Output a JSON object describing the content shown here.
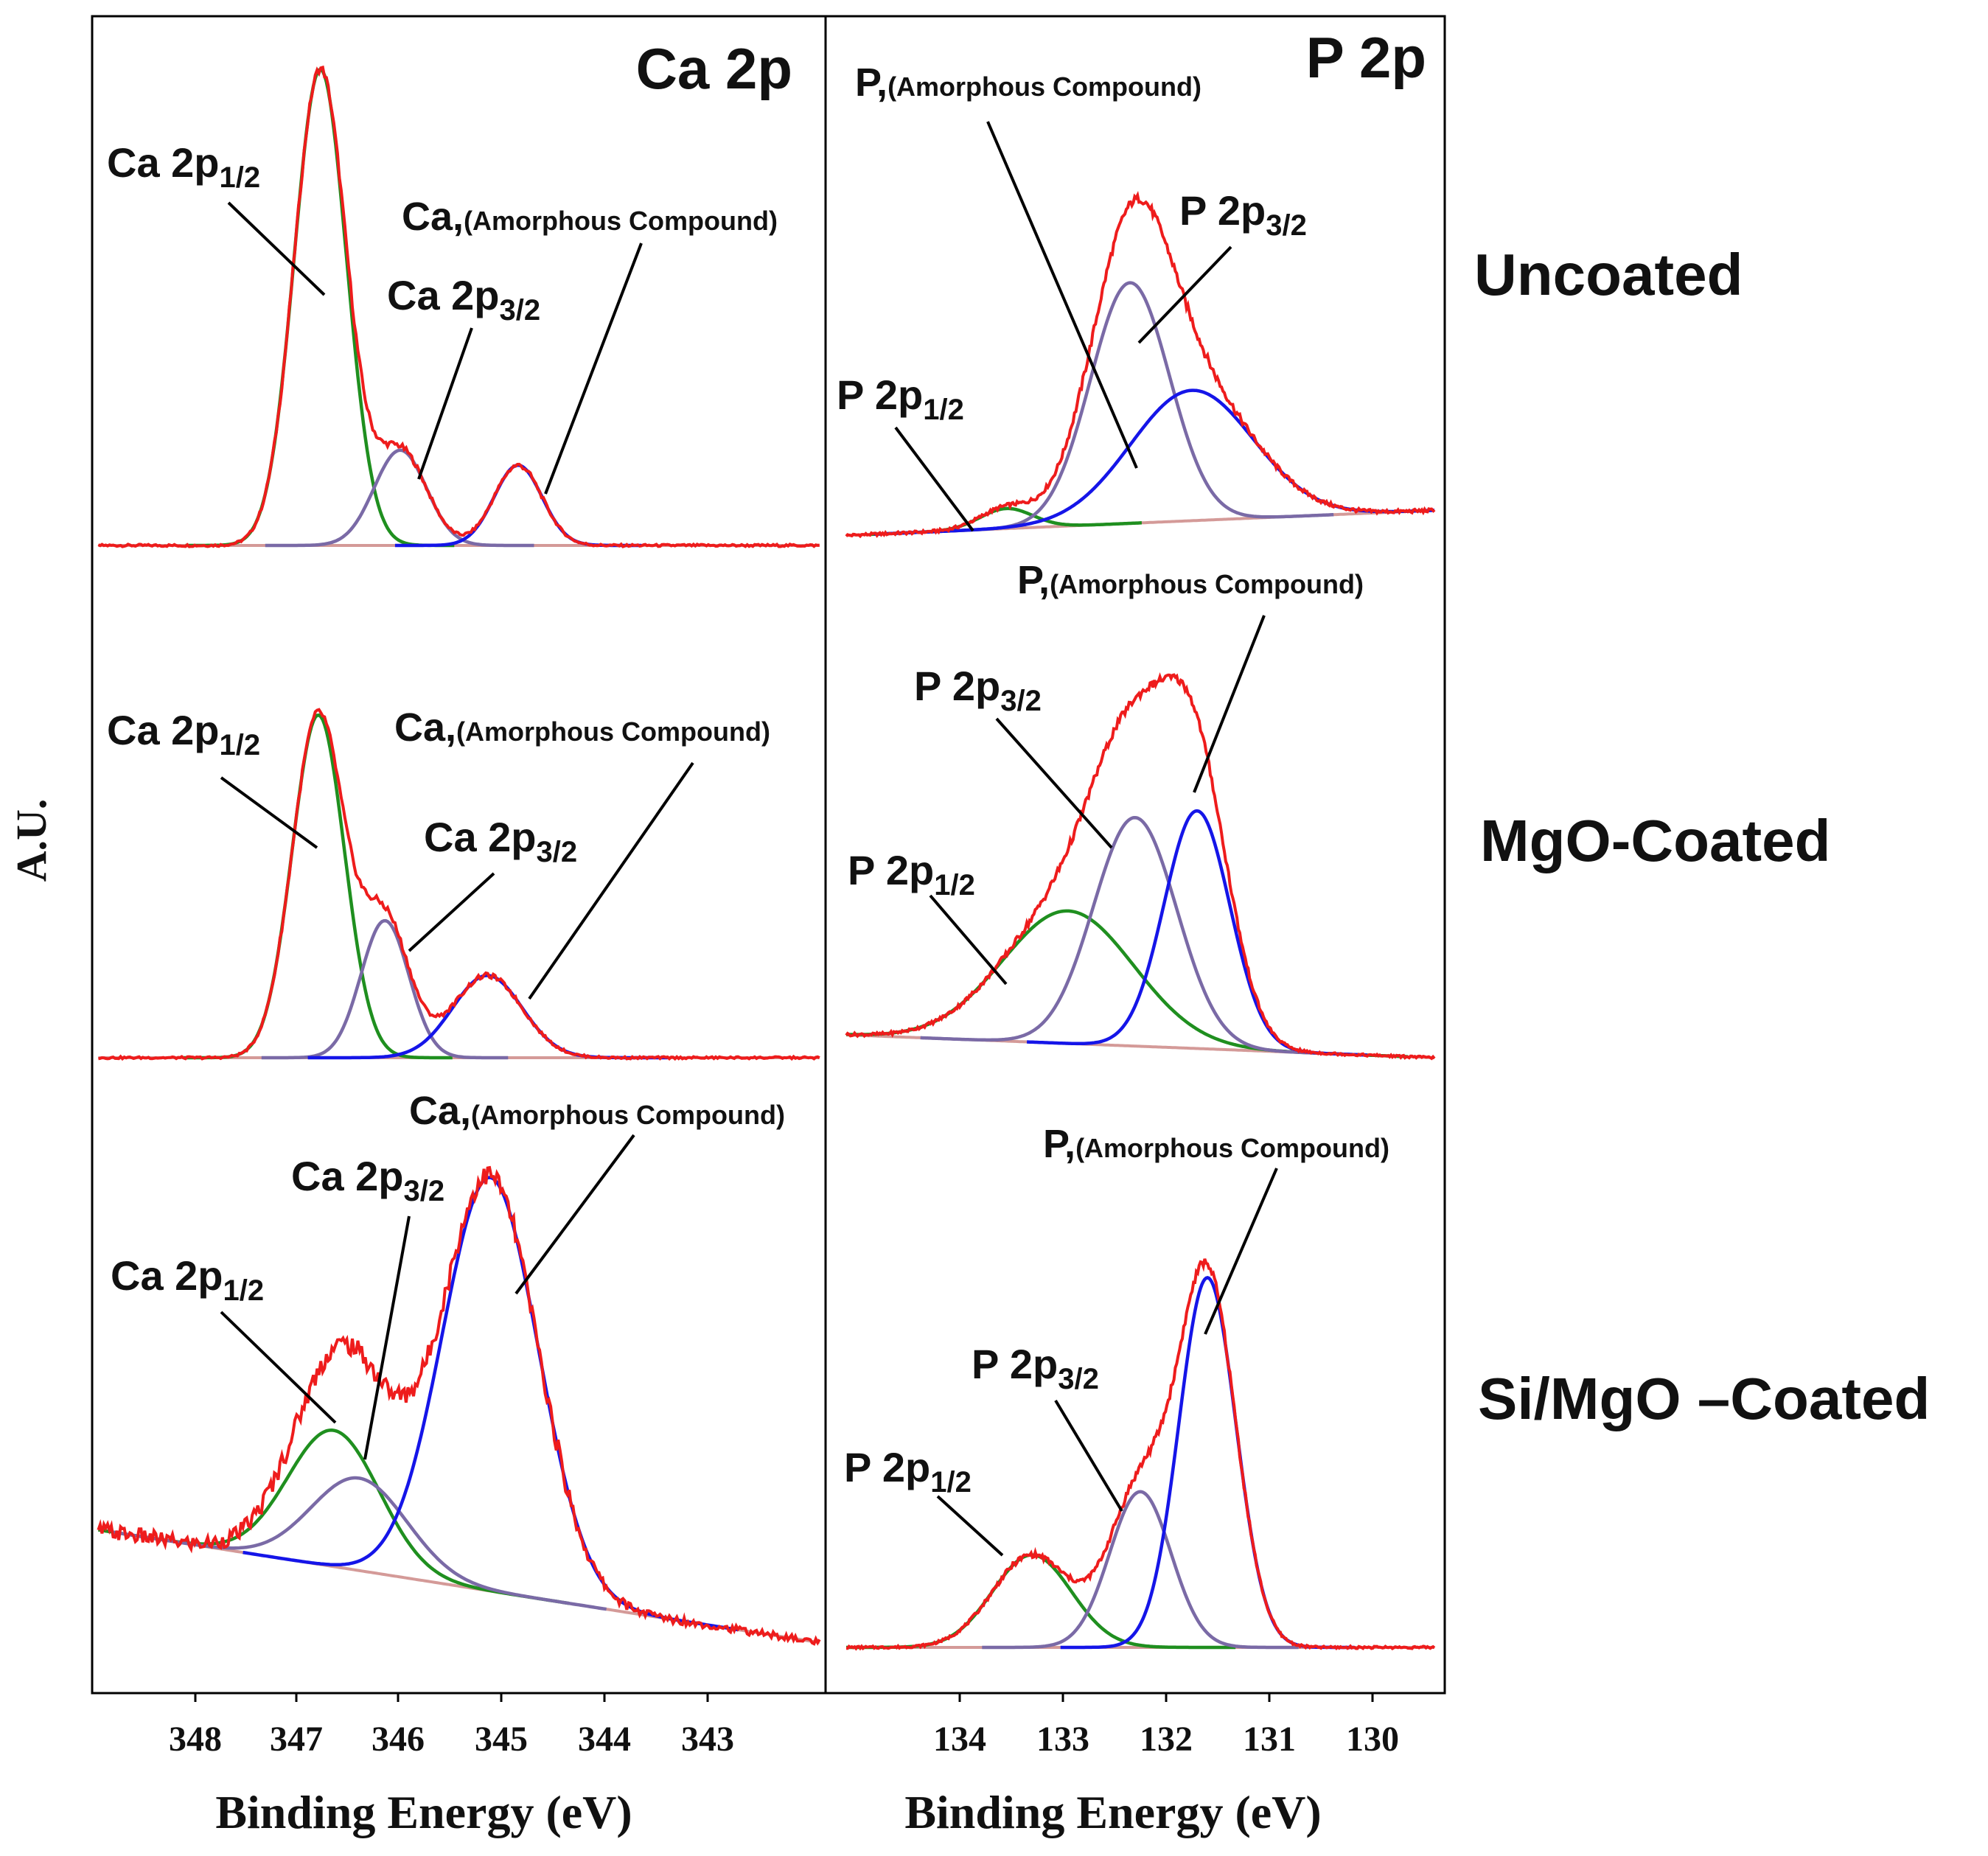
{
  "figure": {
    "y_axis_label": "A.U.",
    "x_axis_label": "Binding Energy (eV)",
    "row_labels": [
      "Uncoated",
      "MgO-Coated",
      "Si/MgO –Coated"
    ]
  },
  "colors": {
    "envelope": "#ee1c1c",
    "p12": "#1f8f1f",
    "p32": "#7a6aa6",
    "amorphous": "#1515e8",
    "background": "#d49a98",
    "leader": "#000000"
  },
  "chart_data": [
    {
      "type": "line",
      "title": "Ca 2p",
      "xlabel": "Binding Energy (eV)",
      "ylabel": "A.U.",
      "x_reversed": true,
      "xlim": [
        349.2,
        341.6
      ],
      "xticks": [
        348,
        347,
        346,
        345,
        344,
        343
      ],
      "samples": [
        "Uncoated",
        "MgO-Coated",
        "Si/MgO –Coated"
      ],
      "components": {
        "p12": {
          "name": "Ca 2p1/2",
          "main": "Ca 2p",
          "sub": "1/2"
        },
        "p32": {
          "name": "Ca 2p3/2",
          "main": "Ca 2p",
          "sub": "3/2"
        },
        "amorphous": {
          "name": "Ca,(Amorphous Compound)",
          "main": "Ca,",
          "sub": "(Amorphous Compound)"
        }
      },
      "series": [
        {
          "sample": "Uncoated",
          "peaks": [
            {
              "component": "p12",
              "center": 346.78,
              "height": 0.95,
              "fwhm": 0.6
            },
            {
              "component": "p32",
              "center": 346.0,
              "height": 0.19,
              "fwhm": 0.6
            },
            {
              "component": "amorphous",
              "center": 344.85,
              "height": 0.16,
              "fwhm": 0.55
            }
          ],
          "background": [
            0.0,
            0.0
          ]
        },
        {
          "sample": "MgO-Coated",
          "peaks": [
            {
              "component": "p12",
              "center": 346.8,
              "height": 0.75,
              "fwhm": 0.6
            },
            {
              "component": "p32",
              "center": 346.15,
              "height": 0.3,
              "fwhm": 0.55
            },
            {
              "component": "amorphous",
              "center": 345.15,
              "height": 0.18,
              "fwhm": 0.8
            }
          ],
          "background": [
            0.0,
            0.0
          ]
        },
        {
          "sample": "Si/MgO –Coated",
          "peaks": [
            {
              "component": "p12",
              "center": 346.65,
              "height": 0.28,
              "fwhm": 1.05
            },
            {
              "component": "p32",
              "center": 346.4,
              "height": 0.19,
              "fwhm": 1.1
            },
            {
              "component": "amorphous",
              "center": 345.12,
              "height": 0.85,
              "fwhm": 1.1
            }
          ],
          "background": [
            0.25,
            0.0
          ]
        }
      ]
    },
    {
      "type": "line",
      "title": "P 2p",
      "xlabel": "Binding Energy (eV)",
      "ylabel": "A.U.",
      "x_reversed": true,
      "xlim": [
        135.1,
        129.4
      ],
      "xticks": [
        134,
        133,
        132,
        131,
        130
      ],
      "samples": [
        "Uncoated",
        "MgO-Coated",
        "Si/MgO –Coated"
      ],
      "components": {
        "p12": {
          "name": "P 2p1/2",
          "main": "P 2p",
          "sub": "1/2"
        },
        "p32": {
          "name": "P 2p3/2",
          "main": "P 2p",
          "sub": "3/2"
        },
        "amorphous": {
          "name": "P,(Amorphous Compound)",
          "main": "P,",
          "sub": "(Amorphous Compound)"
        }
      },
      "series": [
        {
          "sample": "Uncoated",
          "peaks": [
            {
              "component": "p12",
              "center": 133.55,
              "height": 0.04,
              "fwhm": 0.6
            },
            {
              "component": "p32",
              "center": 132.35,
              "height": 0.48,
              "fwhm": 0.9
            },
            {
              "component": "amorphous",
              "center": 131.75,
              "height": 0.26,
              "fwhm": 1.4
            }
          ],
          "background": [
            0.02,
            0.07
          ]
        },
        {
          "sample": "MgO-Coated",
          "peaks": [
            {
              "component": "p12",
              "center": 132.95,
              "height": 0.29,
              "fwhm": 1.5
            },
            {
              "component": "p32",
              "center": 132.3,
              "height": 0.5,
              "fwhm": 0.95
            },
            {
              "component": "amorphous",
              "center": 131.7,
              "height": 0.52,
              "fwhm": 0.75
            }
          ],
          "background": [
            0.05,
            0.0
          ]
        },
        {
          "sample": "Si/MgO –Coated",
          "peaks": [
            {
              "component": "p12",
              "center": 133.3,
              "height": 0.19,
              "fwhm": 0.9
            },
            {
              "component": "p32",
              "center": 132.25,
              "height": 0.32,
              "fwhm": 0.7
            },
            {
              "component": "amorphous",
              "center": 131.6,
              "height": 0.76,
              "fwhm": 0.65
            }
          ],
          "background": [
            0.0,
            0.0
          ]
        }
      ]
    }
  ]
}
